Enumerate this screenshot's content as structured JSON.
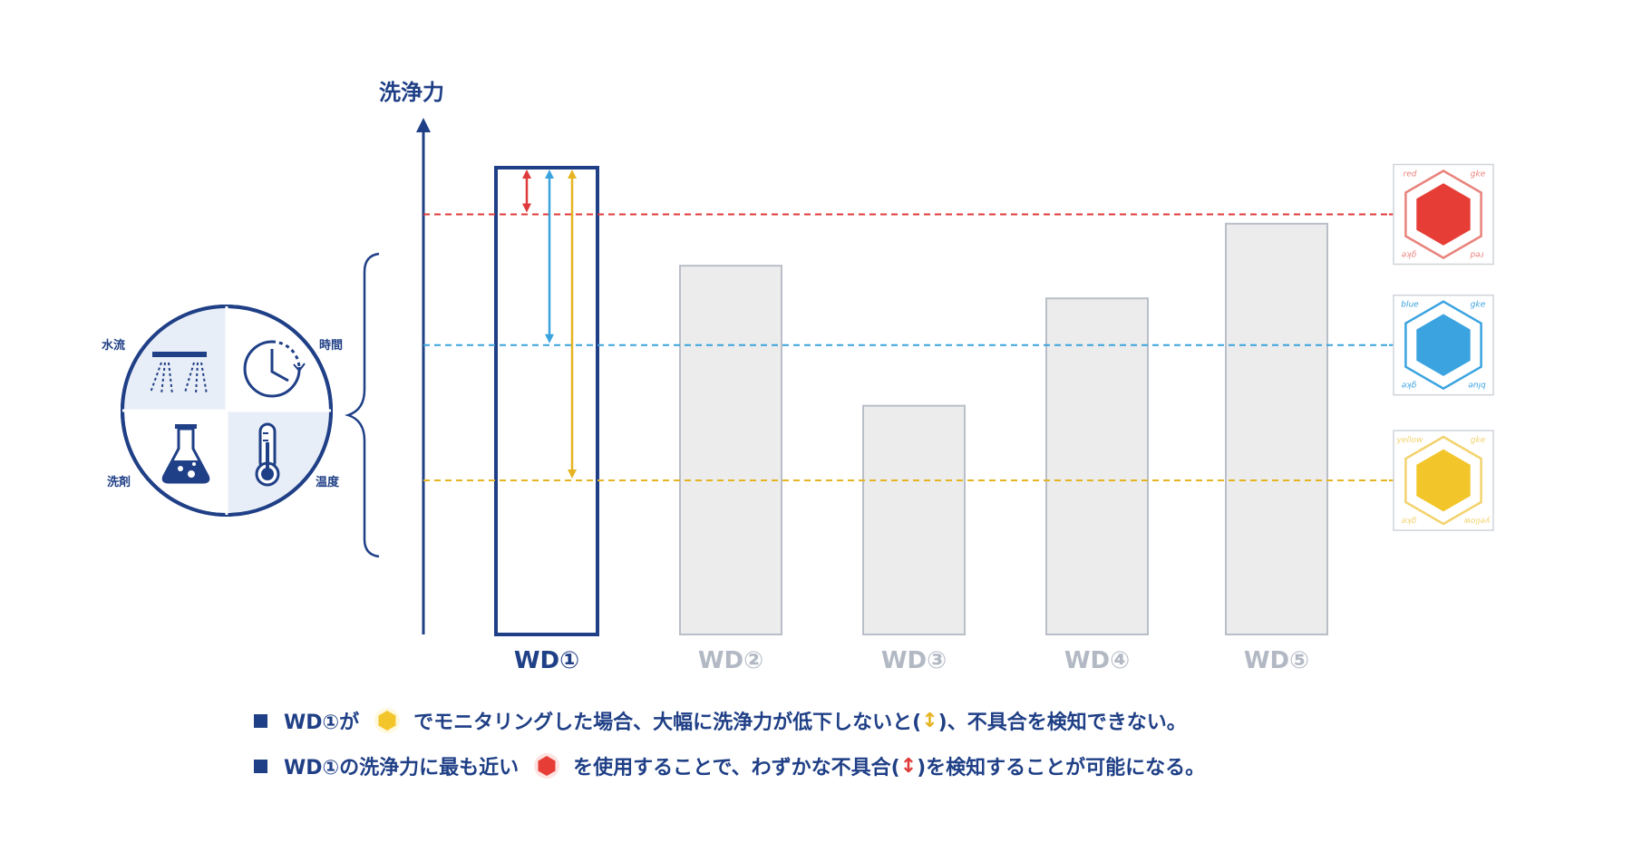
{
  "chart_data": {
    "type": "bar",
    "ylabel": "洗浄力",
    "categories": [
      "WD①",
      "WD②",
      "WD③",
      "WD④",
      "WD⑤"
    ],
    "values": [
      100,
      79,
      49,
      72,
      88
    ],
    "highlight_index": 0,
    "ylim": [
      0,
      110
    ],
    "thresholds": [
      {
        "name": "red",
        "value": 90,
        "color": "#e03a3a"
      },
      {
        "name": "blue",
        "value": 62,
        "color": "#3aa3de"
      },
      {
        "name": "yellow",
        "value": 33,
        "color": "#e6b422"
      }
    ]
  },
  "factors": {
    "top_left": "水流",
    "top_right": "時間",
    "bottom_left": "洗剤",
    "bottom_right": "温度"
  },
  "indicators": [
    {
      "name": "red",
      "fill": "#e63e36",
      "line": "#e9837c",
      "label_tl": "red",
      "label_tr": "gke",
      "label_bl": "gke",
      "label_br": "red"
    },
    {
      "name": "blue",
      "fill": "#3aa3e0",
      "line": "#3aa3e0",
      "label_tl": "blue",
      "label_tr": "gke",
      "label_bl": "gke",
      "label_br": "blue"
    },
    {
      "name": "yellow",
      "fill": "#f2c62b",
      "line": "#f2d36e",
      "label_tl": "yellow",
      "label_tr": "gke",
      "label_bl": "gke",
      "label_br": "yellow"
    }
  ],
  "notes": [
    {
      "before": "WD①が",
      "after": "でモニタリングした場合、大幅に洗浄力が低下しないと(",
      "arrow": "↕",
      "end": ")、不具合を検知できない。"
    },
    {
      "before": "WD①の洗浄力に最も近い",
      "after": "を使用することで、わずかな不具合(",
      "arrow": "↕",
      "end": ")を検知することが可能になる。"
    }
  ],
  "colors": {
    "navy": "#1f3f86",
    "bar_fill": "#ececec",
    "bar_stroke": "#b9bec8",
    "muted_label": "#b3b9c4"
  }
}
